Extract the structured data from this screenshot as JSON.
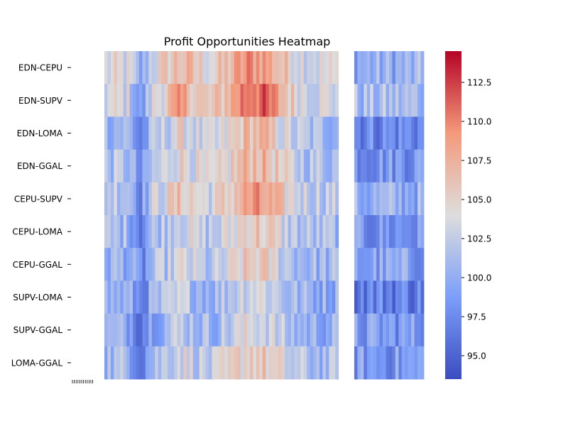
{
  "chart_data": {
    "type": "heatmap",
    "title": "Profit Opportunities Heatmap",
    "rows": [
      "EDN-CEPU",
      "EDN-SUPV",
      "EDN-LOMA",
      "EDN-GGAL",
      "CEPU-SUPV",
      "CEPU-LOMA",
      "CEPU-GGAL",
      "SUPV-LOMA",
      "SUPV-GGAL",
      "LOMA-GGAL"
    ],
    "n_columns": 101,
    "missing_columns": [
      74,
      75,
      76,
      77,
      78
    ],
    "colorbar": {
      "cmap": "coolwarm",
      "vmin": 93.5,
      "vmax": 114.5,
      "ticks": [
        95.0,
        97.5,
        100.0,
        102.5,
        105.0,
        107.5,
        110.0,
        112.5
      ]
    },
    "row_profiles": [
      {
        "base": 103.5,
        "amp": 6.0,
        "tail": 100.0
      },
      {
        "base": 103.5,
        "amp": 8.0,
        "tail": 101.0
      },
      {
        "base": 101.0,
        "amp": 6.0,
        "tail": 97.5
      },
      {
        "base": 101.5,
        "amp": 6.0,
        "tail": 98.5
      },
      {
        "base": 102.5,
        "amp": 6.0,
        "tail": 100.0
      },
      {
        "base": 101.0,
        "amp": 5.0,
        "tail": 98.0
      },
      {
        "base": 100.5,
        "amp": 5.0,
        "tail": 99.0
      },
      {
        "base": 100.0,
        "amp": 4.0,
        "tail": 97.0
      },
      {
        "base": 100.0,
        "amp": 4.0,
        "tail": 98.5
      },
      {
        "base": 101.0,
        "amp": 5.0,
        "tail": 98.5
      }
    ],
    "column_pattern": "values peak near columns 40-55, secondary rise near 20-30, low near column 12 and the right tail"
  }
}
